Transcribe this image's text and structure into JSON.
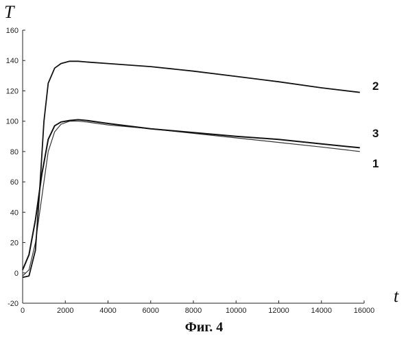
{
  "figure": {
    "caption": "Фиг. 4"
  },
  "chart_data": {
    "type": "line",
    "title": "",
    "xlabel": "t",
    "ylabel": "T",
    "xlim": [
      0,
      16000
    ],
    "ylim": [
      -20,
      160
    ],
    "x_ticks": [
      0,
      2000,
      4000,
      6000,
      8000,
      10000,
      12000,
      14000,
      16000
    ],
    "y_ticks": [
      -20,
      0,
      20,
      40,
      60,
      80,
      100,
      120,
      140,
      160
    ],
    "grid": false,
    "series": [
      {
        "name": "1",
        "color": "#333333",
        "x": [
          0,
          300,
          600,
          900,
          1200,
          1500,
          1800,
          2200,
          2600,
          3000,
          4000,
          6000,
          8000,
          10000,
          12000,
          14000,
          15800
        ],
        "y": [
          -2,
          2,
          20,
          50,
          80,
          93,
          98,
          100,
          100,
          99.5,
          97.5,
          95,
          92,
          89,
          86,
          83,
          80
        ]
      },
      {
        "name": "2",
        "color": "#111111",
        "x": [
          0,
          300,
          600,
          800,
          1000,
          1200,
          1500,
          1800,
          2200,
          2600,
          3000,
          4000,
          6000,
          8000,
          10000,
          12000,
          14000,
          15800
        ],
        "y": [
          -3,
          -2,
          15,
          55,
          100,
          125,
          135,
          138,
          139.5,
          139.5,
          139,
          138,
          136,
          133,
          129.5,
          126,
          122,
          119
        ]
      },
      {
        "name": "3",
        "color": "#111111",
        "x": [
          0,
          300,
          600,
          900,
          1200,
          1500,
          1800,
          2200,
          2600,
          3000,
          4000,
          6000,
          8000,
          10000,
          12000,
          14000,
          15800
        ],
        "y": [
          2,
          12,
          35,
          65,
          88,
          97,
          99.5,
          100.5,
          101,
          100.5,
          98.5,
          95,
          92.5,
          90,
          88,
          85,
          82.5
        ]
      }
    ],
    "labels": [
      "1",
      "2",
      "3"
    ]
  }
}
